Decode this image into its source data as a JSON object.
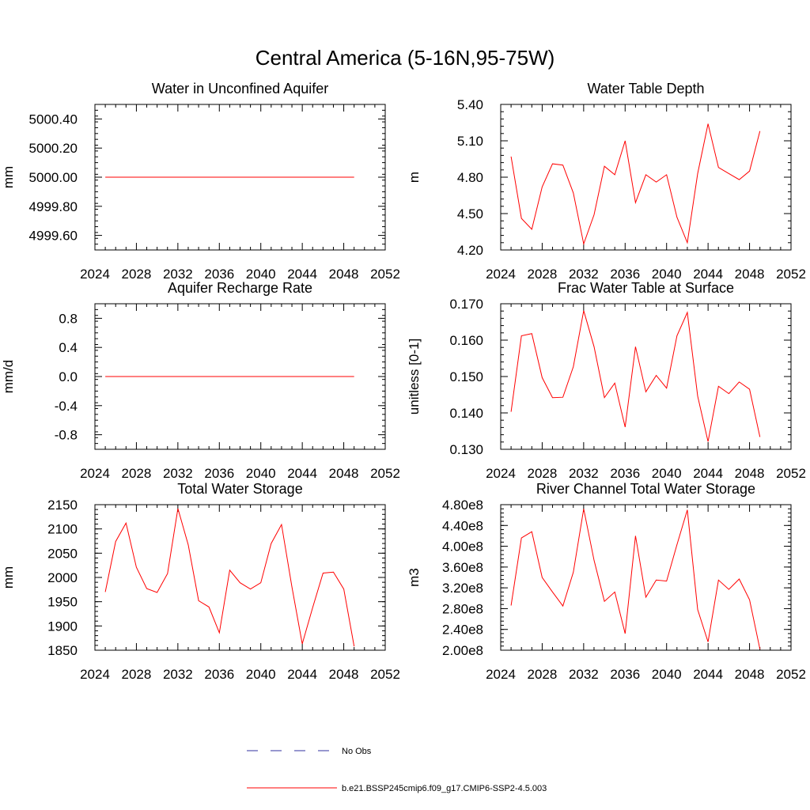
{
  "page_title": "Central America (5-16N,95-75W)",
  "legend": {
    "obs_label": "No Obs",
    "obs_color": "#3030a0",
    "model_label": "b.e21.BSSP245cmip6.f09_g17.CMIP6-SSP2-4.5.003",
    "model_color": "#ff0000"
  },
  "chart_data": [
    {
      "type": "line",
      "title": "Water in Unconfined Aquifer",
      "ylabel": "mm",
      "xlim": [
        2024,
        2052
      ],
      "xticks": [
        2024,
        2028,
        2032,
        2036,
        2040,
        2044,
        2048,
        2052
      ],
      "ylim": [
        4999.5,
        5000.5
      ],
      "yticks": [
        4999.6,
        4999.8,
        5000.0,
        5000.2,
        5000.4
      ],
      "ytick_labels": [
        "4999.60",
        "4999.80",
        "5000.00",
        "5000.20",
        "5000.40"
      ],
      "ytick_minor_step": 0.04,
      "x": [
        2025,
        2026,
        2027,
        2028,
        2029,
        2030,
        2031,
        2032,
        2033,
        2034,
        2035,
        2036,
        2037,
        2038,
        2039,
        2040,
        2041,
        2042,
        2043,
        2044,
        2045,
        2046,
        2047,
        2048,
        2049
      ],
      "values": [
        5000,
        5000,
        5000,
        5000,
        5000,
        5000,
        5000,
        5000,
        5000,
        5000,
        5000,
        5000,
        5000,
        5000,
        5000,
        5000,
        5000,
        5000,
        5000,
        5000,
        5000,
        5000,
        5000,
        5000,
        5000
      ]
    },
    {
      "type": "line",
      "title": "Water Table Depth",
      "ylabel": "m",
      "xlim": [
        2024,
        2052
      ],
      "xticks": [
        2024,
        2028,
        2032,
        2036,
        2040,
        2044,
        2048,
        2052
      ],
      "ylim": [
        4.2,
        5.4
      ],
      "yticks": [
        4.2,
        4.5,
        4.8,
        5.1,
        5.4
      ],
      "ytick_labels": [
        "4.20",
        "4.50",
        "4.80",
        "5.10",
        "5.40"
      ],
      "ytick_minor_step": 0.06,
      "x": [
        2025,
        2026,
        2027,
        2028,
        2029,
        2030,
        2031,
        2032,
        2033,
        2034,
        2035,
        2036,
        2037,
        2038,
        2039,
        2040,
        2041,
        2042,
        2043,
        2044,
        2045,
        2046,
        2047,
        2048,
        2049
      ],
      "values": [
        4.97,
        4.46,
        4.37,
        4.72,
        4.91,
        4.9,
        4.67,
        4.25,
        4.49,
        4.89,
        4.82,
        5.1,
        4.59,
        4.82,
        4.76,
        4.82,
        4.47,
        4.26,
        4.83,
        5.24,
        4.88,
        4.83,
        4.78,
        4.85,
        5.18
      ]
    },
    {
      "type": "line",
      "title": "Aquifer Recharge Rate",
      "ylabel": "mm/d",
      "xlim": [
        2024,
        2052
      ],
      "xticks": [
        2024,
        2028,
        2032,
        2036,
        2040,
        2044,
        2048,
        2052
      ],
      "ylim": [
        -1.0,
        1.0
      ],
      "yticks": [
        -0.8,
        -0.4,
        0.0,
        0.4,
        0.8
      ],
      "ytick_labels": [
        "-0.8",
        "-0.4",
        "0.0",
        "0.4",
        "0.8"
      ],
      "ytick_minor_step": 0.08,
      "x": [
        2025,
        2026,
        2027,
        2028,
        2029,
        2030,
        2031,
        2032,
        2033,
        2034,
        2035,
        2036,
        2037,
        2038,
        2039,
        2040,
        2041,
        2042,
        2043,
        2044,
        2045,
        2046,
        2047,
        2048,
        2049
      ],
      "values": [
        0,
        0,
        0,
        0,
        0,
        0,
        0,
        0,
        0,
        0,
        0,
        0,
        0,
        0,
        0,
        0,
        0,
        0,
        0,
        0,
        0,
        0,
        0,
        0,
        0
      ]
    },
    {
      "type": "line",
      "title": "Frac Water Table at Surface",
      "ylabel": "unitless [0-1]",
      "xlim": [
        2024,
        2052
      ],
      "xticks": [
        2024,
        2028,
        2032,
        2036,
        2040,
        2044,
        2048,
        2052
      ],
      "ylim": [
        0.13,
        0.17
      ],
      "yticks": [
        0.13,
        0.14,
        0.15,
        0.16,
        0.17
      ],
      "ytick_labels": [
        "0.130",
        "0.140",
        "0.150",
        "0.160",
        "0.170"
      ],
      "ytick_minor_step": 0.002,
      "x": [
        2025,
        2026,
        2027,
        2028,
        2029,
        2030,
        2031,
        2032,
        2033,
        2034,
        2035,
        2036,
        2037,
        2038,
        2039,
        2040,
        2041,
        2042,
        2043,
        2044,
        2045,
        2046,
        2047,
        2048,
        2049
      ],
      "values": [
        0.1403,
        0.1612,
        0.1618,
        0.1497,
        0.1442,
        0.1443,
        0.1527,
        0.1681,
        0.1582,
        0.1442,
        0.1482,
        0.1361,
        0.1582,
        0.1458,
        0.1503,
        0.1468,
        0.1612,
        0.1676,
        0.1446,
        0.1321,
        0.1473,
        0.1453,
        0.1485,
        0.1465,
        0.1334
      ]
    },
    {
      "type": "line",
      "title": "Total Water Storage",
      "ylabel": "mm",
      "xlim": [
        2024,
        2052
      ],
      "xticks": [
        2024,
        2028,
        2032,
        2036,
        2040,
        2044,
        2048,
        2052
      ],
      "ylim": [
        1850,
        2150
      ],
      "yticks": [
        1850,
        1900,
        1950,
        2000,
        2050,
        2100,
        2150
      ],
      "ytick_labels": [
        "1850",
        "1900",
        "1950",
        "2000",
        "2050",
        "2100",
        "2150"
      ],
      "ytick_minor_step": 10,
      "x": [
        2025,
        2026,
        2027,
        2028,
        2029,
        2030,
        2031,
        2032,
        2033,
        2034,
        2035,
        2036,
        2037,
        2038,
        2039,
        2040,
        2041,
        2042,
        2043,
        2044,
        2045,
        2046,
        2047,
        2048,
        2049
      ],
      "values": [
        1970,
        2074,
        2112,
        2021,
        1977,
        1969,
        2008,
        2142,
        2067,
        1952,
        1939,
        1886,
        2015,
        1989,
        1976,
        1989,
        2070,
        2109,
        1981,
        1863,
        1938,
        2009,
        2011,
        1976,
        1858
      ]
    },
    {
      "type": "line",
      "title": "River Channel Total Water Storage",
      "ylabel": "m3",
      "xlim": [
        2024,
        2052
      ],
      "xticks": [
        2024,
        2028,
        2032,
        2036,
        2040,
        2044,
        2048,
        2052
      ],
      "ylim": [
        200000000,
        480000000
      ],
      "yticks": [
        200000000,
        240000000,
        280000000,
        320000000,
        360000000,
        400000000,
        440000000,
        480000000
      ],
      "ytick_labels": [
        "2.00e8",
        "2.40e8",
        "2.80e8",
        "3.20e8",
        "3.60e8",
        "4.00e8",
        "4.40e8",
        "4.80e8"
      ],
      "ytick_minor_step": 8000000,
      "x": [
        2025,
        2026,
        2027,
        2028,
        2029,
        2030,
        2031,
        2032,
        2033,
        2034,
        2035,
        2036,
        2037,
        2038,
        2039,
        2040,
        2041,
        2042,
        2043,
        2044,
        2045,
        2046,
        2047,
        2048,
        2049
      ],
      "values": [
        286000000,
        416000000,
        428000000,
        340000000,
        312000000,
        285000000,
        350000000,
        472000000,
        373000000,
        294000000,
        312000000,
        232000000,
        420000000,
        302000000,
        335000000,
        333000000,
        403000000,
        470000000,
        278000000,
        216000000,
        335000000,
        317000000,
        337000000,
        297000000,
        202000000
      ]
    }
  ]
}
